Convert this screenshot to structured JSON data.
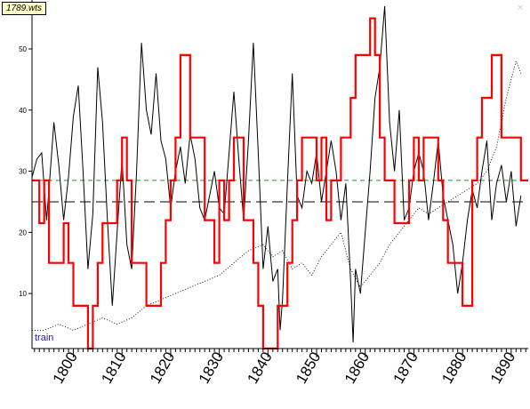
{
  "window": {
    "file_label": "1789.wts",
    "close_glyph": "×",
    "close_icon": "close-icon"
  },
  "chart_data": {
    "type": "line",
    "title": "",
    "xlabel": "",
    "ylabel": "",
    "xlim": [
      1791.5,
      1893.5
    ],
    "ylim": [
      1,
      58
    ],
    "x_ticks": [
      1800,
      1810,
      1820,
      1830,
      1840,
      1850,
      1860,
      1870,
      1880,
      1890
    ],
    "y_ticks": [
      10,
      20,
      30,
      40,
      50
    ],
    "grid": false,
    "series_label": "train",
    "reference_lines": [
      {
        "y": 25,
        "style": "long-dash",
        "color": "#000000"
      },
      {
        "y": 28.5,
        "style": "dash",
        "color": "#2e8b2e"
      }
    ],
    "series": [
      {
        "style": "line",
        "color": "#000000",
        "points": [
          [
            1791.5,
            29
          ],
          [
            1792.5,
            32
          ],
          [
            1793.5,
            33
          ],
          [
            1794.5,
            22
          ],
          [
            1795,
            27
          ],
          [
            1796,
            38
          ],
          [
            1797,
            31
          ],
          [
            1798,
            22
          ],
          [
            1799,
            29
          ],
          [
            1800,
            39
          ],
          [
            1801,
            44
          ],
          [
            1802,
            30
          ],
          [
            1803,
            14
          ],
          [
            1804,
            23
          ],
          [
            1805,
            47
          ],
          [
            1806,
            38
          ],
          [
            1807,
            22
          ],
          [
            1808,
            8
          ],
          [
            1809,
            20
          ],
          [
            1810,
            32
          ],
          [
            1811,
            18
          ],
          [
            1812,
            14
          ],
          [
            1813,
            30
          ],
          [
            1814,
            51
          ],
          [
            1815,
            40
          ],
          [
            1816,
            36
          ],
          [
            1817,
            46
          ],
          [
            1818,
            35
          ],
          [
            1819,
            32
          ],
          [
            1820,
            24
          ],
          [
            1821,
            30
          ],
          [
            1822,
            34
          ],
          [
            1823,
            28
          ],
          [
            1824,
            36
          ],
          [
            1825,
            32
          ],
          [
            1826,
            24
          ],
          [
            1827,
            22
          ],
          [
            1828,
            26
          ],
          [
            1829,
            30
          ],
          [
            1830,
            24
          ],
          [
            1831,
            23
          ],
          [
            1832,
            33
          ],
          [
            1833,
            43
          ],
          [
            1834,
            32
          ],
          [
            1835,
            22
          ],
          [
            1836,
            35
          ],
          [
            1837,
            51
          ],
          [
            1838,
            33
          ],
          [
            1839,
            14
          ],
          [
            1840,
            21
          ],
          [
            1841,
            12
          ],
          [
            1842,
            14
          ],
          [
            1842.5,
            4
          ],
          [
            1843,
            9
          ],
          [
            1844,
            28
          ],
          [
            1845,
            46
          ],
          [
            1846,
            26
          ],
          [
            1847,
            24
          ],
          [
            1848,
            30
          ],
          [
            1849,
            28
          ],
          [
            1850,
            33
          ],
          [
            1851,
            25
          ],
          [
            1852,
            30
          ],
          [
            1853,
            35
          ],
          [
            1854,
            30
          ],
          [
            1855,
            22
          ],
          [
            1856,
            28
          ],
          [
            1857,
            12
          ],
          [
            1857.5,
            2
          ],
          [
            1858,
            14
          ],
          [
            1859,
            10
          ],
          [
            1860,
            20
          ],
          [
            1861,
            30
          ],
          [
            1862,
            42
          ],
          [
            1863,
            47
          ],
          [
            1864,
            57
          ],
          [
            1865,
            38
          ],
          [
            1866,
            30
          ],
          [
            1867,
            40
          ],
          [
            1868,
            22
          ],
          [
            1869,
            24
          ],
          [
            1870,
            30
          ],
          [
            1871,
            33
          ],
          [
            1872,
            30
          ],
          [
            1873,
            22
          ],
          [
            1874,
            28
          ],
          [
            1875,
            35
          ],
          [
            1876,
            26
          ],
          [
            1877,
            22
          ],
          [
            1878,
            18
          ],
          [
            1879,
            10
          ],
          [
            1880,
            15
          ],
          [
            1881,
            22
          ],
          [
            1882,
            27
          ],
          [
            1883,
            24
          ],
          [
            1884,
            30
          ],
          [
            1885,
            35
          ],
          [
            1886,
            22
          ],
          [
            1887,
            28
          ],
          [
            1888,
            31
          ],
          [
            1889,
            25
          ],
          [
            1890,
            30
          ],
          [
            1891,
            21
          ],
          [
            1892,
            26
          ]
        ]
      },
      {
        "style": "dotted",
        "color": "#000000",
        "points": [
          [
            1791.5,
            4
          ],
          [
            1794,
            4
          ],
          [
            1797,
            5
          ],
          [
            1800,
            4
          ],
          [
            1803,
            5
          ],
          [
            1806,
            6
          ],
          [
            1809,
            5
          ],
          [
            1812,
            6
          ],
          [
            1815,
            8
          ],
          [
            1818,
            9
          ],
          [
            1821,
            10
          ],
          [
            1824,
            11
          ],
          [
            1827,
            12
          ],
          [
            1830,
            13
          ],
          [
            1833,
            15
          ],
          [
            1836,
            17
          ],
          [
            1839,
            18
          ],
          [
            1841,
            16
          ],
          [
            1843,
            17
          ],
          [
            1845,
            14
          ],
          [
            1847,
            15
          ],
          [
            1849,
            13
          ],
          [
            1851,
            16
          ],
          [
            1853,
            18
          ],
          [
            1855,
            20
          ],
          [
            1857,
            14
          ],
          [
            1859,
            11
          ],
          [
            1861,
            13
          ],
          [
            1863,
            15
          ],
          [
            1865,
            18
          ],
          [
            1867,
            20
          ],
          [
            1869,
            22
          ],
          [
            1871,
            24
          ],
          [
            1873,
            23
          ],
          [
            1875,
            24
          ],
          [
            1877,
            25
          ],
          [
            1879,
            26
          ],
          [
            1881,
            27
          ],
          [
            1883,
            28
          ],
          [
            1885,
            30
          ],
          [
            1887,
            34
          ],
          [
            1889,
            42
          ],
          [
            1891,
            48
          ],
          [
            1892,
            46
          ]
        ]
      },
      {
        "style": "step",
        "color": "#ff0000",
        "points": [
          [
            1791.5,
            28.5
          ],
          [
            1793,
            28.5
          ],
          [
            1793,
            21.5
          ],
          [
            1794,
            21.5
          ],
          [
            1794,
            28.5
          ],
          [
            1795,
            28.5
          ],
          [
            1795,
            15
          ],
          [
            1798,
            15
          ],
          [
            1798,
            21.5
          ],
          [
            1799,
            21.5
          ],
          [
            1799,
            15
          ],
          [
            1800,
            15
          ],
          [
            1800,
            8
          ],
          [
            1803,
            8
          ],
          [
            1803,
            1
          ],
          [
            1804,
            1
          ],
          [
            1804,
            8
          ],
          [
            1805,
            8
          ],
          [
            1805,
            15
          ],
          [
            1806,
            15
          ],
          [
            1806,
            21.5
          ],
          [
            1809,
            21.5
          ],
          [
            1809,
            28.5
          ],
          [
            1810,
            28.5
          ],
          [
            1810,
            35.5
          ],
          [
            1811,
            35.5
          ],
          [
            1811,
            28.5
          ],
          [
            1812,
            28.5
          ],
          [
            1812,
            15
          ],
          [
            1815,
            15
          ],
          [
            1815,
            8
          ],
          [
            1818,
            8
          ],
          [
            1818,
            15
          ],
          [
            1819,
            15
          ],
          [
            1819,
            22
          ],
          [
            1820,
            22
          ],
          [
            1820,
            28.5
          ],
          [
            1821,
            28.5
          ],
          [
            1821,
            35.5
          ],
          [
            1822,
            35.5
          ],
          [
            1822,
            49
          ],
          [
            1824,
            49
          ],
          [
            1824,
            35.5
          ],
          [
            1827,
            35.5
          ],
          [
            1827,
            22
          ],
          [
            1829,
            22
          ],
          [
            1829,
            15
          ],
          [
            1830,
            15
          ],
          [
            1830,
            28.5
          ],
          [
            1831,
            28.5
          ],
          [
            1831,
            22
          ],
          [
            1832,
            22
          ],
          [
            1832,
            28.5
          ],
          [
            1833,
            28.5
          ],
          [
            1833,
            35.5
          ],
          [
            1835,
            35.5
          ],
          [
            1835,
            22
          ],
          [
            1837,
            22
          ],
          [
            1837,
            15
          ],
          [
            1838,
            15
          ],
          [
            1838,
            8
          ],
          [
            1839,
            8
          ],
          [
            1839,
            1
          ],
          [
            1842,
            1
          ],
          [
            1842,
            8
          ],
          [
            1844,
            8
          ],
          [
            1844,
            15
          ],
          [
            1845,
            15
          ],
          [
            1845,
            22
          ],
          [
            1846,
            22
          ],
          [
            1846,
            28.5
          ],
          [
            1847,
            28.5
          ],
          [
            1847,
            35.5
          ],
          [
            1850,
            35.5
          ],
          [
            1850,
            28.5
          ],
          [
            1851,
            28.5
          ],
          [
            1851,
            35.5
          ],
          [
            1852,
            35.5
          ],
          [
            1852,
            22
          ],
          [
            1853,
            22
          ],
          [
            1853,
            28.5
          ],
          [
            1855,
            28.5
          ],
          [
            1855,
            35.5
          ],
          [
            1857,
            35.5
          ],
          [
            1857,
            42
          ],
          [
            1858,
            42
          ],
          [
            1858,
            49
          ],
          [
            1861,
            49
          ],
          [
            1861,
            55
          ],
          [
            1862,
            55
          ],
          [
            1862,
            49
          ],
          [
            1863,
            49
          ],
          [
            1863,
            35.5
          ],
          [
            1864,
            35.5
          ],
          [
            1864,
            28.5
          ],
          [
            1866,
            28.5
          ],
          [
            1866,
            21.5
          ],
          [
            1869,
            21.5
          ],
          [
            1869,
            28.5
          ],
          [
            1870,
            28.5
          ],
          [
            1870,
            35.5
          ],
          [
            1871,
            35.5
          ],
          [
            1871,
            28.5
          ],
          [
            1872,
            28.5
          ],
          [
            1872,
            35.5
          ],
          [
            1875,
            35.5
          ],
          [
            1875,
            28.5
          ],
          [
            1876,
            28.5
          ],
          [
            1876,
            22
          ],
          [
            1877,
            22
          ],
          [
            1877,
            15
          ],
          [
            1880,
            15
          ],
          [
            1880,
            8
          ],
          [
            1882,
            8
          ],
          [
            1882,
            28.5
          ],
          [
            1883,
            28.5
          ],
          [
            1883,
            35.5
          ],
          [
            1884,
            35.5
          ],
          [
            1884,
            42
          ],
          [
            1886,
            42
          ],
          [
            1886,
            49
          ],
          [
            1888,
            49
          ],
          [
            1888,
            35.5
          ],
          [
            1892,
            35.5
          ],
          [
            1892,
            28.5
          ],
          [
            1893.5,
            28.5
          ]
        ]
      }
    ]
  }
}
